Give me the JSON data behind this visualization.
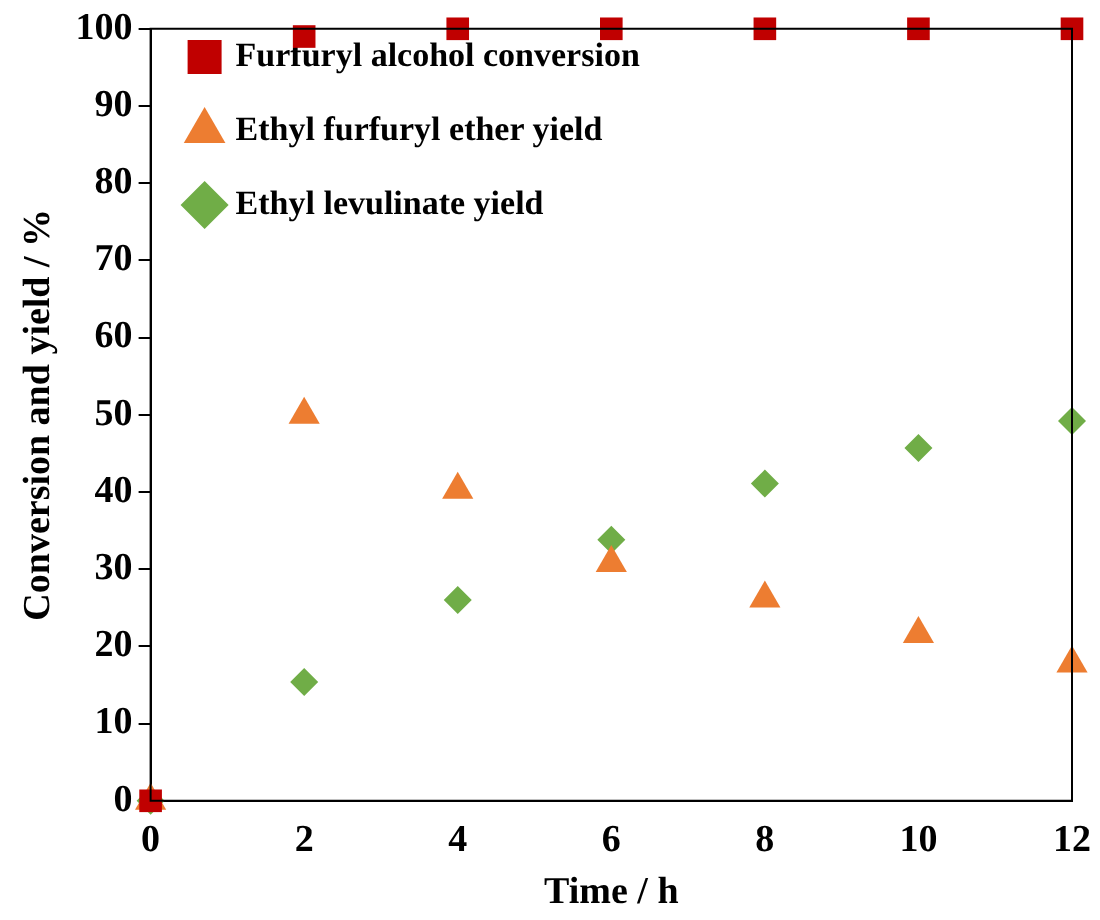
{
  "chart_data": {
    "type": "scatter",
    "xlabel": "Time / h",
    "ylabel": "Conversion and yield / %",
    "x": [
      0,
      2,
      4,
      6,
      8,
      10,
      12
    ],
    "series": [
      {
        "name": "Furfuryl alcohol conversion",
        "color": "#c00000",
        "marker": "square",
        "values": [
          0,
          99,
          100,
          100,
          100,
          100,
          100
        ]
      },
      {
        "name": "Ethyl furfuryl ether yield",
        "color": "#ed7d31",
        "marker": "triangle",
        "values": [
          0,
          50,
          40.3,
          30.8,
          26.2,
          21.6,
          17.8
        ]
      },
      {
        "name": "Ethyl levulinate yield",
        "color": "#70ad47",
        "marker": "diamond",
        "values": [
          0,
          15.4,
          26,
          33.8,
          41.1,
          45.7,
          49.2
        ]
      }
    ],
    "xlim": [
      0,
      12
    ],
    "xticks": [
      0,
      2,
      4,
      6,
      8,
      10,
      12
    ],
    "ylim": [
      0,
      100
    ],
    "yticks": [
      0,
      10,
      20,
      30,
      40,
      50,
      60,
      70,
      80,
      90,
      100
    ],
    "grid": false,
    "legend": "top left"
  }
}
